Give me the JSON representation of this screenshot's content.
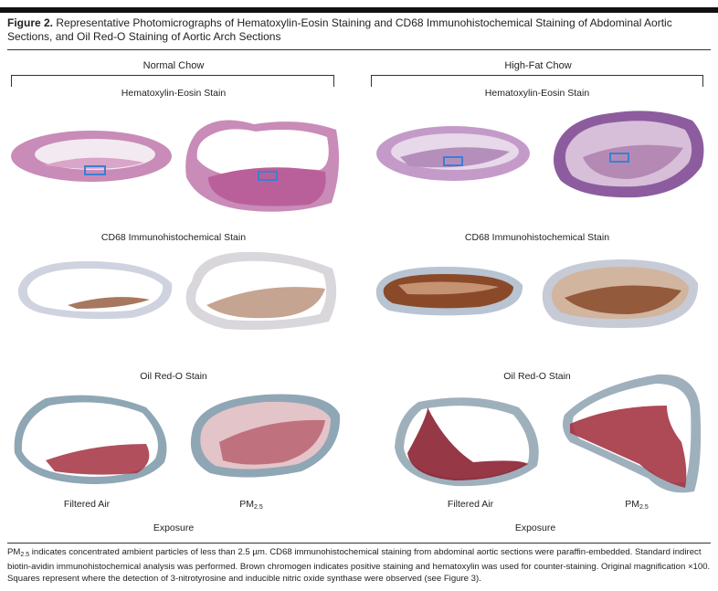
{
  "figure": {
    "label": "Figure 2.",
    "title": "Representative Photomicrographs of Hematoxylin-Eosin Staining and CD68 Immunohistochemical Staining of Abdominal Aortic Sections, and Oil Red-O Staining of Aortic Arch Sections"
  },
  "groups": {
    "left": "Normal Chow",
    "right": "High-Fat Chow"
  },
  "stains": {
    "he_left": "Hematoxylin-Eosin Stain",
    "he_right": "Hematoxylin-Eosin Stain",
    "cd68_left": "CD68 Immunohistochemical Stain",
    "cd68_right": "CD68 Immunohistochemical Stain",
    "oro_left": "Oil Red-O Stain",
    "oro_right": "Oil Red-O Stain"
  },
  "columns": {
    "filtered_left": "Filtered Air",
    "pm_left": "PM",
    "pm_sub_left": "2.5",
    "filtered_right": "Filtered Air",
    "pm_right": "PM",
    "pm_sub_right": "2.5"
  },
  "exposure": {
    "left": "Exposure",
    "right": "Exposure"
  },
  "footnote": {
    "pm": "PM",
    "pm_sub": "2.5",
    "text": " indicates concentrated ambient particles of less than 2.5 µm. CD68 immunohistochemical staining from abdominal aortic sections were paraffin-embedded. Standard indirect biotin-avidin immunohistochemical analysis was performed. Brown chromogen indicates positive staining and hematoxylin was used for counter-staining. Original magnification ×100. Squares represent where the detection of 3-nitrotyrosine and inducible nitric oxide synthase were observed (see Figure 3)."
  },
  "colors": {
    "he_pink": "#c98bb8",
    "he_purple": "#8d5c9e",
    "cd68_brown": "#8a4a2a",
    "cd68_wall": "#cfd3df",
    "oro_red": "#a3303f",
    "oro_wall": "#8fa6b5",
    "marker_blue": "#3a7fd6"
  }
}
